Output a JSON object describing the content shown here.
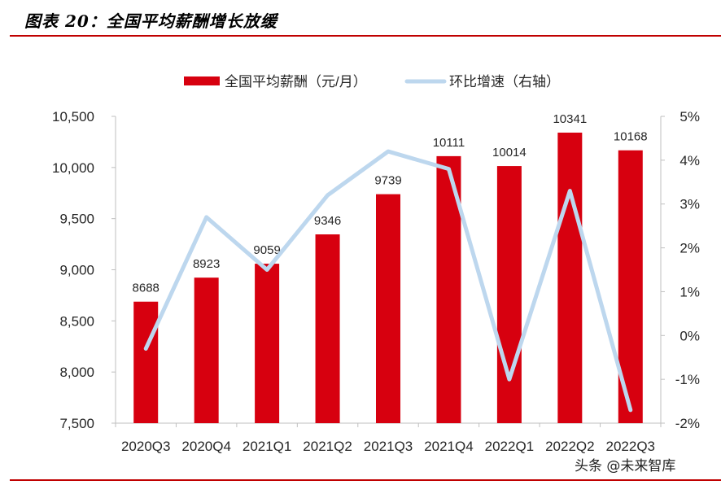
{
  "title": "图表 20：全国平均薪酬增长放缓",
  "watermark": "头条 @未来智库",
  "colors": {
    "bar": "#d7000f",
    "line": "#bdd7ee",
    "accent_rule": "#c00000",
    "axis": "#bfbfbf",
    "text": "#262626"
  },
  "chart_data": {
    "type": "bar",
    "categories": [
      "2020Q3",
      "2020Q4",
      "2021Q1",
      "2021Q2",
      "2021Q3",
      "2021Q4",
      "2022Q1",
      "2022Q2",
      "2022Q3"
    ],
    "series": [
      {
        "name": "全国平均薪酬（元/月）",
        "type": "bar",
        "axis": "left",
        "values": [
          8688,
          8923,
          9059,
          9346,
          9739,
          10111,
          10014,
          10341,
          10168
        ],
        "data_labels": [
          "8688",
          "8923",
          "9059",
          "9346",
          "9739",
          "10111",
          "10014",
          "10341",
          "10168"
        ]
      },
      {
        "name": "环比增速（右轴）",
        "type": "line",
        "axis": "right",
        "values": [
          -0.3,
          2.7,
          1.5,
          3.2,
          4.2,
          3.8,
          -1.0,
          3.3,
          -1.7
        ]
      }
    ],
    "y_left": {
      "min": 7500,
      "max": 10500,
      "ticks": [
        "7,500",
        "8,000",
        "8,500",
        "9,000",
        "9,500",
        "10,000",
        "10,500"
      ]
    },
    "y_right": {
      "min": -2,
      "max": 5,
      "ticks": [
        "-2%",
        "-1%",
        "0%",
        "1%",
        "2%",
        "3%",
        "4%",
        "5%"
      ]
    },
    "legend_position": "top",
    "grid": false
  }
}
